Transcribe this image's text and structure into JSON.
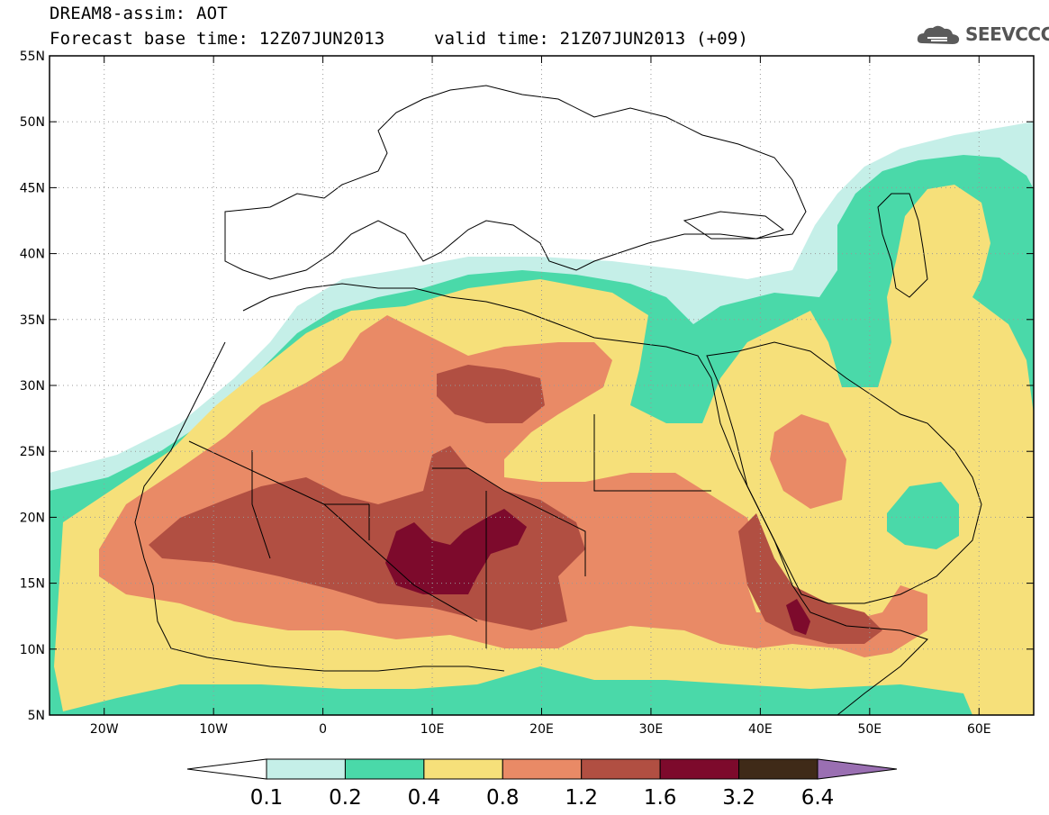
{
  "header": {
    "line1": "DREAM8-assim: AOT",
    "line2": "Forecast base time: 12Z07JUN2013",
    "line3": "valid time: 21Z07JUN2013 (+09)"
  },
  "logo": {
    "text": "SEEVCCC",
    "icon": "cloud-icon"
  },
  "map": {
    "lon_range": [
      -25,
      65
    ],
    "lat_range": [
      5,
      55
    ],
    "lat_labels": [
      "55N",
      "50N",
      "45N",
      "40N",
      "35N",
      "30N",
      "25N",
      "20N",
      "15N",
      "10N",
      "5N"
    ],
    "lat_values": [
      55,
      50,
      45,
      40,
      35,
      30,
      25,
      20,
      15,
      10,
      5
    ],
    "lon_labels": [
      "20W",
      "10W",
      "0",
      "10E",
      "20E",
      "30E",
      "40E",
      "50E",
      "60E"
    ],
    "lon_values": [
      -20,
      -10,
      0,
      10,
      20,
      30,
      40,
      50,
      60
    ],
    "grid": "dotted"
  },
  "colorbar": {
    "labels": [
      "0.1",
      "0.2",
      "0.4",
      "0.8",
      "1.2",
      "1.6",
      "3.2",
      "6.4"
    ],
    "colors": [
      "#c5efe8",
      "#4ad9a9",
      "#f6e07a",
      "#e98a66",
      "#b14f42",
      "#7d0a2c",
      "#3f2a18"
    ],
    "extend_colors": {
      "low": "#ffffff",
      "high": "#9a6fb2"
    }
  }
}
